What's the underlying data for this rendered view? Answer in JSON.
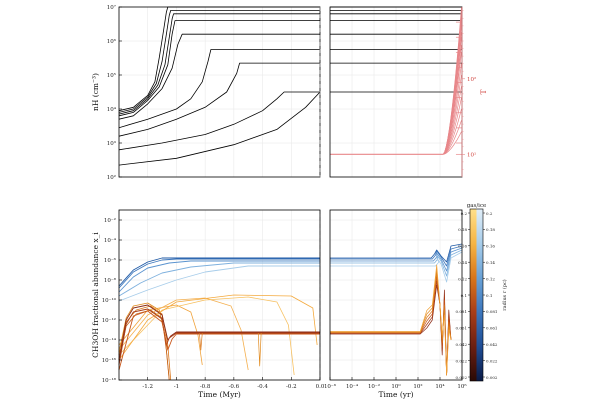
{
  "chart_data": [
    {
      "type": "line",
      "panel": "top-left",
      "ylabel": "n_H (cm^-3)",
      "yscale": "log",
      "ylim_log10": [
        2,
        7
      ],
      "ytick_labels": [
        "10^2",
        "10^3",
        "10^4",
        "10^5",
        "10^6",
        "10^7"
      ],
      "xlim": [
        -1.4,
        0.0
      ],
      "grid": true,
      "series_color": "#000000",
      "series": [
        {
          "x": [
            -1.4,
            -1.3,
            -1.2,
            -1.15,
            -1.12,
            -1.09,
            -1.07,
            -1.06,
            0.0
          ],
          "log_y": [
            3.95,
            4.05,
            4.4,
            4.8,
            5.5,
            6.3,
            6.85,
            7.0,
            7.0
          ]
        },
        {
          "x": [
            -1.4,
            -1.3,
            -1.2,
            -1.14,
            -1.1,
            -1.07,
            -1.05,
            -1.04,
            0.0
          ],
          "log_y": [
            3.9,
            4.0,
            4.35,
            4.75,
            5.4,
            6.2,
            6.75,
            6.9,
            6.9
          ]
        },
        {
          "x": [
            -1.4,
            -1.3,
            -1.2,
            -1.13,
            -1.08,
            -1.05,
            -1.03,
            -1.02,
            0.0
          ],
          "log_y": [
            3.85,
            3.95,
            4.3,
            4.7,
            5.3,
            6.1,
            6.65,
            6.8,
            6.8
          ]
        },
        {
          "x": [
            -1.4,
            -1.3,
            -1.2,
            -1.12,
            -1.06,
            -1.03,
            -1.01,
            0.0
          ],
          "log_y": [
            3.8,
            3.9,
            4.25,
            4.65,
            5.3,
            6.2,
            6.6,
            6.6
          ]
        },
        {
          "x": [
            -1.4,
            -1.3,
            -1.2,
            -1.1,
            -1.03,
            -0.99,
            -0.96,
            0.0
          ],
          "log_y": [
            3.7,
            3.8,
            4.15,
            4.6,
            5.2,
            5.9,
            6.2,
            6.2
          ]
        },
        {
          "x": [
            -1.4,
            -1.2,
            -1.0,
            -0.9,
            -0.82,
            -0.78,
            -0.76,
            0.0
          ],
          "log_y": [
            3.45,
            3.7,
            4.0,
            4.3,
            4.8,
            5.4,
            5.75,
            5.75
          ]
        },
        {
          "x": [
            -1.4,
            -1.2,
            -1.0,
            -0.8,
            -0.65,
            -0.58,
            -0.56,
            0.0
          ],
          "log_y": [
            3.2,
            3.4,
            3.7,
            4.05,
            4.5,
            5.05,
            5.35,
            5.35
          ]
        },
        {
          "x": [
            -1.4,
            -1.1,
            -0.8,
            -0.6,
            -0.4,
            -0.3,
            -0.25,
            0.0
          ],
          "log_y": [
            2.8,
            3.0,
            3.25,
            3.55,
            3.95,
            4.3,
            4.5,
            4.5
          ]
        },
        {
          "x": [
            -1.4,
            -1.0,
            -0.6,
            -0.3,
            -0.1,
            0.0
          ],
          "log_y": [
            2.35,
            2.55,
            2.95,
            3.4,
            4.05,
            4.5
          ]
        }
      ]
    },
    {
      "type": "line",
      "panel": "top-right",
      "xscale": "log",
      "xlim_log10": [
        -6,
        6
      ],
      "yscale": "log",
      "ylim_log10": [
        2,
        7
      ],
      "y2label": "T_gas (K)",
      "y2scale": "log",
      "y2lim_log10": [
        0.7,
        2.95
      ],
      "y2tick_labels": [
        "10^1",
        "10^2"
      ],
      "grid": true,
      "density_levels_log10": [
        7.0,
        6.9,
        6.8,
        6.6,
        6.2,
        5.75,
        5.35,
        4.5
      ],
      "density_color": "#000000",
      "temperature": {
        "color": "#e8878a",
        "rise_x_log10": [
          4.3,
          5.95
        ],
        "start_log10": 1.0,
        "end_log10": [
          2.95,
          2.9,
          2.85,
          2.8,
          2.75,
          2.7,
          2.62,
          2.55,
          2.45,
          2.35,
          2.2,
          2.05,
          1.9,
          1.75,
          1.6,
          1.45,
          1.3
        ],
        "step_levels_log10": [
          2.75,
          2.55,
          2.35,
          2.15,
          1.95,
          1.75,
          1.55,
          1.35,
          1.15,
          1.0
        ]
      }
    },
    {
      "type": "line",
      "panel": "bottom-left",
      "ylabel": "CH3OH fractional abundance x_i",
      "yscale": "log",
      "ylim_log10": [
        -18,
        -1
      ],
      "ytick_labels": [
        "10^-18",
        "10^-16",
        "10^-14",
        "10^-12",
        "10^-10",
        "10^-8",
        "10^-6",
        "10^-4",
        "10^-2"
      ],
      "xlim": [
        -1.4,
        0.0
      ],
      "xtick_labels": [
        "-1.2",
        "-1",
        "-0.8",
        "-0.6",
        "-0.4",
        "-0.2",
        "0.0"
      ],
      "xlabel": "Time (Myr)",
      "grid": true,
      "gas_series": [
        {
          "x": [
            -1.4,
            -1.3,
            -1.2,
            -1.1,
            -1.0,
            0.0
          ],
          "log_y": [
            -8.6,
            -7.0,
            -6.2,
            -5.8,
            -5.8,
            -5.8
          ],
          "color": "#1f5aa6"
        },
        {
          "x": [
            -1.4,
            -1.3,
            -1.2,
            -1.1,
            -1.0,
            0.0
          ],
          "log_y": [
            -8.8,
            -7.2,
            -6.4,
            -6.0,
            -5.9,
            -5.9
          ],
          "color": "#3d77bd"
        },
        {
          "x": [
            -1.4,
            -1.3,
            -1.2,
            -1.05,
            -0.9,
            0.0
          ],
          "log_y": [
            -9.2,
            -7.7,
            -6.8,
            -6.3,
            -6.1,
            -6.1
          ],
          "color": "#5a93cf"
        },
        {
          "x": [
            -1.4,
            -1.25,
            -1.1,
            -0.9,
            -0.6,
            0.0
          ],
          "log_y": [
            -9.6,
            -8.3,
            -7.3,
            -6.7,
            -6.3,
            -6.3
          ],
          "color": "#7fb1de"
        },
        {
          "x": [
            -1.4,
            -1.2,
            -1.0,
            -0.8,
            -0.5,
            0.0
          ],
          "log_y": [
            -10.1,
            -9.0,
            -8.0,
            -7.2,
            -6.6,
            -6.6
          ],
          "color": "#a8cdea"
        }
      ],
      "ice_series": [
        {
          "x": [
            -1.4,
            -1.35,
            -1.3,
            -1.2,
            -1.12,
            -1.08,
            -1.06,
            -1.05
          ],
          "log_y": [
            -15.2,
            -11.8,
            -10.6,
            -10.3,
            -11.0,
            -13.5,
            -16.5,
            -18
          ],
          "color": "#e0891d"
        },
        {
          "x": [
            -1.4,
            -1.35,
            -1.28,
            -1.18,
            -1.1,
            -1.06,
            -1.04
          ],
          "log_y": [
            -15.5,
            -12.2,
            -11.0,
            -10.6,
            -11.4,
            -14.5,
            -18
          ],
          "color": "#d9761a"
        },
        {
          "x": [
            -1.4,
            -1.35,
            -1.28,
            -1.18,
            -1.1,
            -1.07,
            -1.05
          ],
          "log_y": [
            -16.0,
            -12.6,
            -11.4,
            -11.0,
            -11.8,
            -15.0,
            -18
          ],
          "color": "#c5601a"
        },
        {
          "x": [
            -1.4,
            -1.2,
            -1.0,
            -0.9,
            -0.85,
            -0.82
          ],
          "log_y": [
            -14.5,
            -11.0,
            -10.5,
            -11.2,
            -13.5,
            -16.5
          ],
          "color": "#f0a23a"
        },
        {
          "x": [
            -1.4,
            -1.2,
            -1.0,
            -0.8,
            -0.62,
            -0.55,
            -0.5
          ],
          "log_y": [
            -15.0,
            -11.5,
            -10.0,
            -9.8,
            -10.6,
            -13.0,
            -17.0
          ],
          "color": "#f4b050"
        },
        {
          "x": [
            -1.4,
            -1.1,
            -0.8,
            -0.5,
            -0.3,
            -0.22,
            -0.18
          ],
          "log_y": [
            -15.5,
            -11.0,
            -10.0,
            -9.7,
            -10.2,
            -12.5,
            -17.5
          ],
          "color": "#f7c060"
        },
        {
          "x": [
            -1.4,
            -1.2,
            -1.0,
            -0.6,
            -0.2,
            -0.05,
            -0.02
          ],
          "log_y": [
            -16.0,
            -12.0,
            -10.2,
            -9.5,
            -9.6,
            -10.8,
            -14.5
          ],
          "color": "#f4a93c"
        }
      ],
      "plateau_series": [
        {
          "x": [
            -1.4,
            -1.35,
            -1.3,
            -1.2,
            -1.1,
            -1.06,
            -1.04,
            -1.0,
            0.0
          ],
          "log_y": [
            -16.0,
            -12.0,
            -10.8,
            -10.5,
            -11.5,
            -14.0,
            -13.6,
            -13.2,
            -13.2
          ],
          "color": "#8b2a16"
        },
        {
          "x": [
            -1.4,
            -1.35,
            -1.3,
            -1.2,
            -1.1,
            -1.07,
            -1.05,
            -1.0,
            0.0
          ],
          "log_y": [
            -16.5,
            -12.4,
            -11.2,
            -10.9,
            -11.9,
            -14.5,
            -13.8,
            -13.3,
            -13.3
          ],
          "color": "#a83d18"
        },
        {
          "x": [
            -1.4,
            -1.3,
            -1.2,
            -1.1,
            -1.06,
            -1.03,
            -1.0,
            0.0
          ],
          "log_y": [
            -17.0,
            -11.6,
            -11.1,
            -12.2,
            -15.0,
            -13.9,
            -13.4,
            -13.4
          ],
          "color": "#c9561a"
        }
      ],
      "dips": [
        {
          "x": -0.83,
          "top_log10": -13.3,
          "bottom_log10": -15.0,
          "color": "#d9761a"
        },
        {
          "x": -0.42,
          "top_log10": -13.3,
          "bottom_log10": -16.6,
          "color": "#e0891d"
        }
      ]
    },
    {
      "type": "line",
      "panel": "bottom-right",
      "xscale": "log",
      "xlim_log10": [
        -6,
        6
      ],
      "xtick_labels": [
        "10^-6",
        "10^-4",
        "10^-2",
        "10^0",
        "10^2",
        "10^4",
        "10^6"
      ],
      "xlabel": "Time (yr)",
      "yscale": "log",
      "ylim_log10": [
        -18,
        -1
      ],
      "grid": true,
      "gas_levels_log10": [
        -5.8,
        -5.9,
        -6.1,
        -6.3,
        -6.6
      ],
      "gas_colors": [
        "#1f5aa6",
        "#3d77bd",
        "#5a93cf",
        "#7fb1de",
        "#a8cdea"
      ],
      "ice_plateau_log10": -13.3,
      "ice_colors": [
        "#8b2a16",
        "#a83d18",
        "#c9561a",
        "#d9761a",
        "#e0891d",
        "#f0a23a"
      ]
    },
    {
      "type": "colorbar",
      "title": "gas/ice",
      "label": "radius r (pc)",
      "ice_tick_labels": [
        "0.002",
        "0.022",
        "0.042",
        "0.061",
        "0.081",
        "0.1",
        "0.12",
        "0.14",
        "0.16",
        "0.18",
        "0.2"
      ],
      "gas_tick_labels": [
        "0.002",
        "0.022",
        "0.042",
        "0.061",
        "0.081",
        "0.1",
        "0.12",
        "0.14",
        "0.16",
        "0.18",
        "0.2"
      ],
      "ice_colormap": [
        "#2a0a06",
        "#6b1f12",
        "#a83d18",
        "#d9761a",
        "#f6b544",
        "#ffe08a"
      ],
      "gas_colormap": [
        "#0b1a45",
        "#1f4e96",
        "#3d77bd",
        "#6aa2d6",
        "#a8cdea",
        "#e1eef8"
      ]
    }
  ]
}
